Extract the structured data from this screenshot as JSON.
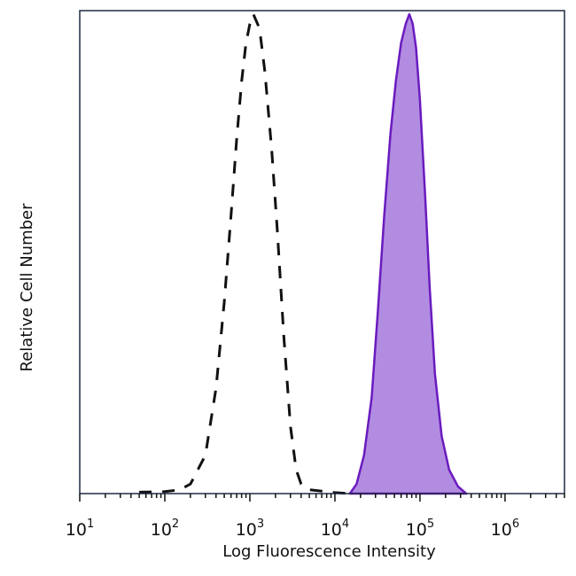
{
  "chart_data": {
    "type": "area",
    "title": "",
    "xlabel": "Log Fluorescence Intensity",
    "ylabel": "Relative Cell Number",
    "x_scale": "log",
    "xlim": [
      10,
      5000000
    ],
    "ylim": [
      0,
      100
    ],
    "grid": false,
    "legend": "none",
    "x_ticks": [
      {
        "base": "10",
        "exp": "1",
        "value": 10
      },
      {
        "base": "10",
        "exp": "2",
        "value": 100
      },
      {
        "base": "10",
        "exp": "3",
        "value": 1000
      },
      {
        "base": "10",
        "exp": "4",
        "value": 10000
      },
      {
        "base": "10",
        "exp": "5",
        "value": 100000
      },
      {
        "base": "10",
        "exp": "6",
        "value": 1000000
      }
    ],
    "series": [
      {
        "style": "dashed",
        "color": "#111111",
        "points": [
          [
            50,
            0.3
          ],
          [
            100,
            0.4
          ],
          [
            150,
            0.8
          ],
          [
            200,
            2
          ],
          [
            300,
            8
          ],
          [
            400,
            22
          ],
          [
            500,
            40
          ],
          [
            600,
            58
          ],
          [
            700,
            74
          ],
          [
            800,
            86
          ],
          [
            900,
            94
          ],
          [
            1000,
            98
          ],
          [
            1100,
            100
          ],
          [
            1300,
            97
          ],
          [
            1500,
            88
          ],
          [
            1800,
            72
          ],
          [
            2100,
            55
          ],
          [
            2500,
            33
          ],
          [
            3000,
            14
          ],
          [
            3500,
            5
          ],
          [
            4000,
            2
          ],
          [
            5000,
            0.8
          ],
          [
            7000,
            0.5
          ],
          [
            10000,
            0.2
          ],
          [
            15000,
            0
          ]
        ]
      },
      {
        "style": "filled",
        "color": "#6a1bbf",
        "fill": "#b28ce0",
        "points": [
          [
            15000,
            0
          ],
          [
            18000,
            2
          ],
          [
            22000,
            8
          ],
          [
            27000,
            20
          ],
          [
            32000,
            38
          ],
          [
            38000,
            58
          ],
          [
            45000,
            75
          ],
          [
            52000,
            86
          ],
          [
            60000,
            94
          ],
          [
            68000,
            98
          ],
          [
            75000,
            100
          ],
          [
            82000,
            98
          ],
          [
            90000,
            93
          ],
          [
            100000,
            82
          ],
          [
            115000,
            62
          ],
          [
            130000,
            43
          ],
          [
            150000,
            25
          ],
          [
            180000,
            12
          ],
          [
            220000,
            5
          ],
          [
            280000,
            1.5
          ],
          [
            350000,
            0
          ]
        ]
      }
    ]
  }
}
